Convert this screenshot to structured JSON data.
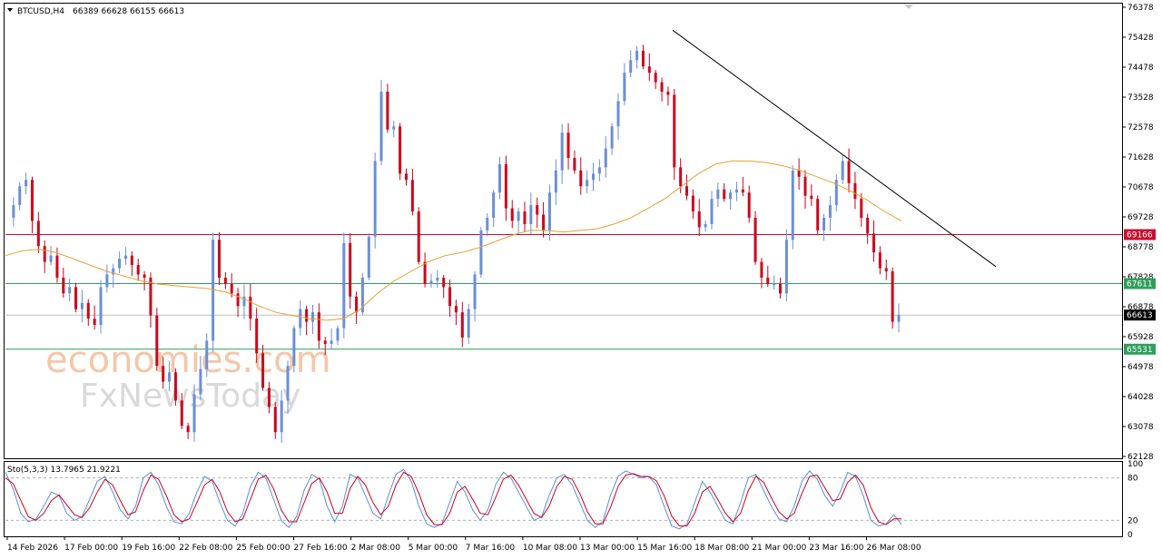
{
  "header": {
    "symbol": "BTCUSD,H4",
    "ohlc": "66389 66628 66155 66613"
  },
  "watermark": {
    "brand": "economies.com",
    "partner": "FxNewsToday"
  },
  "chart_data": {
    "type": "candlestick",
    "timeframe": "H4",
    "ylim": [
      62128,
      76378
    ],
    "y_ticks": [
      76378,
      75428,
      74478,
      73528,
      72578,
      71628,
      70678,
      69728,
      68778,
      67828,
      66878,
      65928,
      64978,
      64028,
      63078,
      62128
    ],
    "x_ticks": [
      "14 Feb 2026",
      "17 Feb 00:00",
      "19 Feb 16:00",
      "22 Feb 08:00",
      "25 Feb 00:00",
      "27 Feb 16:00",
      "2 Mar 08:00",
      "5 Mar 00:00",
      "7 Mar 16:00",
      "10 Mar 08:00",
      "13 Mar 00:00",
      "15 Mar 16:00",
      "18 Mar 08:00",
      "21 Mar 00:00",
      "23 Mar 16:00",
      "26 Mar 08:00"
    ],
    "last_price": 66613,
    "horizontal_levels": [
      {
        "value": 69166,
        "color": "#c8102e"
      },
      {
        "value": 67611,
        "color": "#2e9e5b"
      },
      {
        "value": 65531,
        "color": "#2e9e5b"
      }
    ],
    "trendline": {
      "start": 75650,
      "end": 68150
    },
    "colors": {
      "bull": "#6a8fd8",
      "bear": "#d0021b",
      "ma": "#e8a030",
      "stoch_main": "#5b8fd8",
      "stoch_signal": "#d0021b"
    },
    "price_path": [
      69700,
      70100,
      70700,
      70900,
      69600,
      68800,
      68300,
      68500,
      67800,
      67300,
      67500,
      66800,
      67000,
      66500,
      66300,
      67500,
      67900,
      68100,
      68400,
      68500,
      68200,
      67900,
      67800,
      66600,
      65000,
      64500,
      64800,
      63900,
      63100,
      62900,
      64100,
      64900,
      65800,
      69000,
      67800,
      67600,
      67300,
      66900,
      67200,
      66500,
      65400,
      64300,
      63700,
      62900,
      63900,
      65000,
      66200,
      66800,
      66400,
      66700,
      65800,
      65700,
      65800,
      66200,
      68900,
      67200,
      66700,
      67800,
      69100,
      71500,
      73700,
      72500,
      72600,
      71100,
      70900,
      69900,
      68300,
      67600,
      67700,
      67800,
      67500,
      66900,
      66700,
      65900,
      66800,
      67900,
      69300,
      69700,
      70500,
      71400,
      70000,
      69600,
      69900,
      69500,
      70100,
      69800,
      69300,
      70500,
      71200,
      72400,
      71600,
      71200,
      70700,
      70900,
      71100,
      71300,
      71900,
      72600,
      73400,
      74300,
      74700,
      75000,
      74500,
      74300,
      74000,
      73700,
      73600,
      71300,
      70700,
      70400,
      69900,
      69400,
      69500,
      70300,
      70600,
      70300,
      70500,
      70600,
      70500,
      69700,
      68300,
      67800,
      67600,
      67600,
      67300,
      69000,
      71200,
      71000,
      70400,
      70300,
      69300,
      69700,
      70100,
      70900,
      71500,
      70800,
      70300,
      69700,
      69200,
      68600,
      68100,
      68000,
      66400,
      66613
    ],
    "ma_path": [
      68500,
      68650,
      68700,
      68600,
      68400,
      68200,
      68000,
      67850,
      67700,
      67600,
      67550,
      67500,
      67450,
      67350,
      67150,
      66900,
      66700,
      66600,
      66500,
      66450,
      66500,
      66800,
      67300,
      67700,
      68000,
      68300,
      68500,
      68600,
      68750,
      68950,
      69150,
      69300,
      69300,
      69250,
      69300,
      69350,
      69500,
      69700,
      70000,
      70300,
      70700,
      71100,
      71400,
      71500,
      71500,
      71450,
      71350,
      71200,
      71000,
      70800,
      70550,
      70250,
      69900,
      69600
    ],
    "stochastic": {
      "label": "Sto(5,3,3) 13.7965 21.9221",
      "main": 13.7965,
      "signal": 21.9221,
      "levels": [
        80,
        20
      ],
      "axis_labels": [
        "100",
        "80",
        "20",
        "0"
      ],
      "k_path": [
        88,
        65,
        30,
        18,
        22,
        40,
        60,
        55,
        30,
        20,
        25,
        50,
        75,
        82,
        60,
        35,
        22,
        40,
        80,
        88,
        70,
        40,
        18,
        15,
        30,
        60,
        82,
        75,
        45,
        20,
        12,
        30,
        68,
        88,
        80,
        50,
        20,
        10,
        25,
        62,
        85,
        78,
        40,
        18,
        40,
        85,
        80,
        55,
        30,
        22,
        55,
        85,
        92,
        75,
        40,
        15,
        10,
        15,
        45,
        75,
        60,
        35,
        20,
        35,
        70,
        88,
        80,
        60,
        40,
        20,
        25,
        55,
        80,
        85,
        70,
        45,
        20,
        10,
        18,
        55,
        82,
        90,
        85,
        80,
        82,
        70,
        40,
        12,
        8,
        15,
        45,
        75,
        60,
        40,
        20,
        15,
        45,
        80,
        85,
        62,
        40,
        22,
        18,
        40,
        75,
        90,
        78,
        55,
        40,
        60,
        88,
        82,
        55,
        20,
        12,
        15,
        28,
        14
      ],
      "d_path": [
        80,
        72,
        48,
        25,
        20,
        30,
        48,
        56,
        42,
        28,
        24,
        38,
        60,
        78,
        70,
        48,
        28,
        32,
        62,
        84,
        78,
        55,
        28,
        18,
        22,
        45,
        70,
        78,
        60,
        32,
        18,
        22,
        50,
        78,
        84,
        65,
        35,
        18,
        18,
        45,
        72,
        80,
        60,
        30,
        30,
        65,
        82,
        70,
        45,
        28,
        40,
        70,
        88,
        82,
        58,
        28,
        14,
        14,
        30,
        60,
        68,
        50,
        30,
        28,
        52,
        78,
        84,
        70,
        50,
        30,
        24,
        40,
        68,
        82,
        78,
        58,
        32,
        15,
        15,
        38,
        68,
        84,
        86,
        82,
        82,
        76,
        55,
        26,
        12,
        12,
        30,
        60,
        68,
        50,
        30,
        18,
        30,
        62,
        82,
        74,
        52,
        32,
        22,
        30,
        58,
        82,
        84,
        66,
        48,
        50,
        74,
        84,
        70,
        38,
        18,
        14,
        22,
        22
      ]
    }
  }
}
